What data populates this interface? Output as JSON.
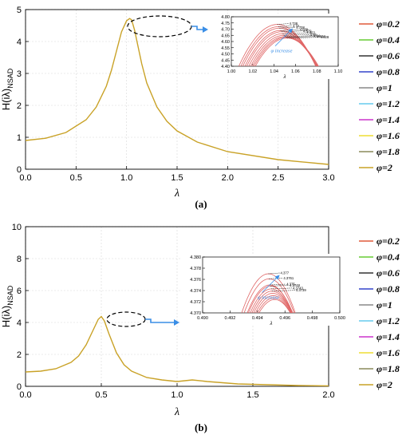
{
  "chart_data": [
    {
      "type": "line",
      "panel_label": "(a)",
      "xlabel": "λ",
      "ylabel": "H(iλ)",
      "ylabel_sub": "NSAD",
      "xlim": [
        0,
        3.0
      ],
      "ylim": [
        0,
        5
      ],
      "x_ticks": [
        "0.0",
        "0.5",
        "1.0",
        "1.5",
        "2.0",
        "2.5",
        "3.0"
      ],
      "y_ticks": [
        "0",
        "1",
        "2",
        "3",
        "4",
        "5"
      ],
      "grid": true,
      "legend_position": "right",
      "series_curve": {
        "x": [
          0.0,
          0.2,
          0.4,
          0.6,
          0.7,
          0.8,
          0.85,
          0.9,
          0.95,
          1.0,
          1.03,
          1.05,
          1.08,
          1.1,
          1.15,
          1.2,
          1.3,
          1.4,
          1.5,
          1.7,
          2.0,
          2.5,
          3.0
        ],
        "y": [
          0.9,
          0.97,
          1.15,
          1.55,
          1.95,
          2.6,
          3.1,
          3.7,
          4.3,
          4.65,
          4.72,
          4.68,
          4.35,
          4.05,
          3.3,
          2.7,
          1.95,
          1.5,
          1.2,
          0.85,
          0.55,
          0.3,
          0.15
        ]
      },
      "inset": {
        "xlim": [
          1.0,
          1.1
        ],
        "ylim": [
          4.4,
          4.8
        ],
        "x_ticks": [
          "1.00",
          "1.02",
          "1.04",
          "1.06",
          "1.08",
          "1.10"
        ],
        "y_ticks": [
          "4.40",
          "4.45",
          "4.50",
          "4.55",
          "4.60",
          "4.65",
          "4.70",
          "4.75",
          "4.80"
        ],
        "xlabel": "λ",
        "annotation": "φ increase",
        "peak_labels": [
          "4.738",
          "4.72",
          "4.708",
          "4.689",
          "4.679",
          "4.663",
          "4.65",
          "4.64",
          "4.634",
          "4.628"
        ],
        "peaks": [
          4.738,
          4.72,
          4.708,
          4.689,
          4.679,
          4.663,
          4.65,
          4.64,
          4.634,
          4.628
        ],
        "peak_x": [
          1.043,
          1.044,
          1.045,
          1.046,
          1.047,
          1.048,
          1.049,
          1.05,
          1.051,
          1.052
        ]
      }
    },
    {
      "type": "line",
      "panel_label": "(b)",
      "xlabel": "λ",
      "ylabel": "H(iλ)",
      "ylabel_sub": "NSAD",
      "xlim": [
        0,
        2.0
      ],
      "ylim": [
        0,
        10
      ],
      "x_ticks": [
        "0.0",
        "0.5",
        "1.0",
        "1.5",
        "2.0"
      ],
      "y_ticks": [
        "0",
        "2",
        "4",
        "6",
        "8",
        "10"
      ],
      "grid": true,
      "legend_position": "right",
      "series_curve": {
        "x": [
          0.0,
          0.1,
          0.2,
          0.3,
          0.35,
          0.4,
          0.45,
          0.48,
          0.5,
          0.52,
          0.55,
          0.6,
          0.65,
          0.7,
          0.8,
          0.9,
          1.0,
          1.05,
          1.1,
          1.2,
          1.4,
          1.6,
          1.8,
          2.0
        ],
        "y": [
          0.9,
          0.95,
          1.1,
          1.5,
          1.9,
          2.6,
          3.6,
          4.2,
          4.37,
          4.1,
          3.3,
          2.1,
          1.35,
          0.95,
          0.55,
          0.4,
          0.3,
          0.35,
          0.4,
          0.3,
          0.15,
          0.1,
          0.05,
          0.03
        ]
      },
      "inset": {
        "xlim": [
          0.49,
          0.5
        ],
        "ylim": [
          4.37,
          4.38
        ],
        "x_ticks": [
          "0.490",
          "0.492",
          "0.494",
          "0.496",
          "0.498",
          "0.500"
        ],
        "y_ticks": [
          "4.370",
          "4.372",
          "4.374",
          "4.376",
          "4.378",
          "4.380"
        ],
        "xlabel": "λ",
        "annotation": "φ increase",
        "peak_labels": [
          "4.377",
          "4.3761",
          "4.375",
          "4.3748",
          "4.3743",
          "4.3739"
        ],
        "peaks": [
          4.377,
          4.3761,
          4.375,
          4.3748,
          4.3743,
          4.3739,
          4.3735,
          4.3731,
          4.3727,
          4.3724
        ],
        "peak_x": [
          0.4948,
          0.49485,
          0.4949,
          0.49495,
          0.495,
          0.49505,
          0.4951,
          0.49515,
          0.4952,
          0.49525
        ]
      }
    }
  ],
  "legend": [
    {
      "label": "φ=0.2",
      "color": "#e05a3a"
    },
    {
      "label": "φ=0.4",
      "color": "#66cc33"
    },
    {
      "label": "φ=0.6",
      "color": "#333333"
    },
    {
      "label": "φ=0.8",
      "color": "#3344cc"
    },
    {
      "label": "φ=1",
      "color": "#888888"
    },
    {
      "label": "φ=1.2",
      "color": "#66ccee"
    },
    {
      "label": "φ=1.4",
      "color": "#cc33cc"
    },
    {
      "label": "φ=1.6",
      "color": "#eedd33"
    },
    {
      "label": "φ=1.8",
      "color": "#8a8a5a"
    },
    {
      "label": "φ=2",
      "color": "#c9a227"
    }
  ],
  "colors": {
    "curve": "#c9a227",
    "inset_curves": "#e06666",
    "arrow": "#3a8ee6",
    "grid": "#d8d8d8"
  }
}
